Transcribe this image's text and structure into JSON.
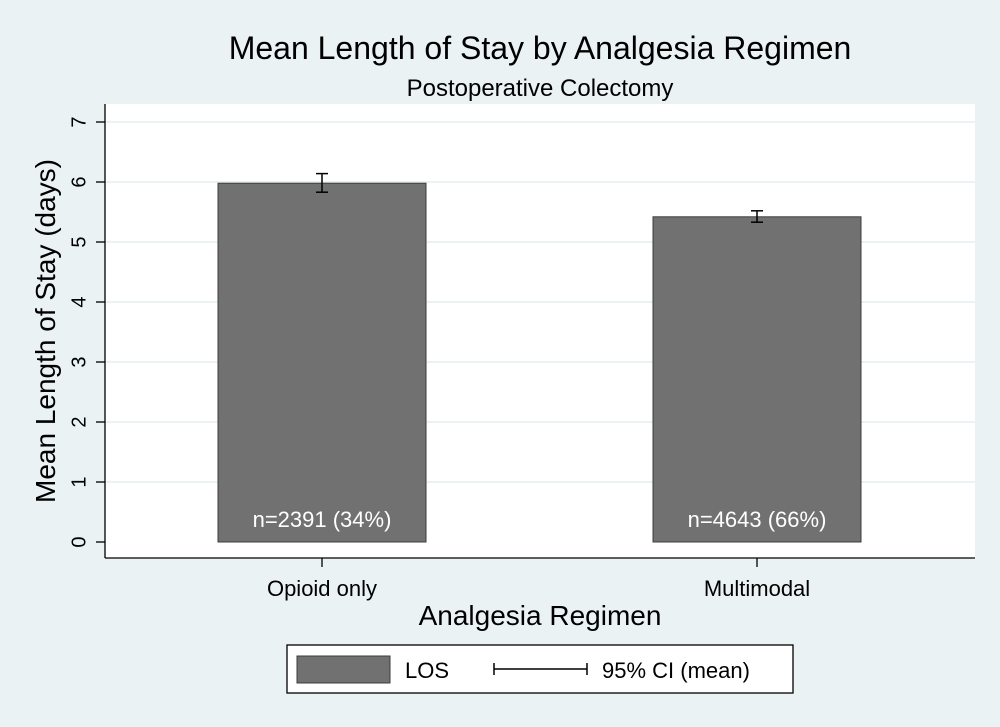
{
  "chart_data": {
    "type": "bar",
    "title": "Mean Length of Stay by Analgesia Regimen",
    "subtitle": "Postoperative Colectomy",
    "xlabel": "Analgesia Regimen",
    "ylabel": "Mean Length of Stay (days)",
    "ylim": [
      0,
      7
    ],
    "yticks": [
      0,
      1,
      2,
      3,
      4,
      5,
      6,
      7
    ],
    "categories": [
      "Opioid only",
      "Multimodal"
    ],
    "series": [
      {
        "name": "LOS",
        "values": [
          5.98,
          5.42
        ],
        "ci_low": [
          5.83,
          5.33
        ],
        "ci_high": [
          6.14,
          5.52
        ],
        "labels": [
          "n=2391 (34%)",
          "n=4643 (66%)"
        ]
      }
    ],
    "legend": {
      "position": "bottom",
      "items": [
        {
          "key": "bar",
          "label": "LOS"
        },
        {
          "key": "ci",
          "label": "95% CI (mean)"
        }
      ]
    },
    "grid": true
  },
  "colors": {
    "background": "#eaf2f3",
    "plot_area": "#ffffff",
    "bar_fill": "#717171",
    "bar_stroke": "#3c3c3c",
    "gridline": "#eaf2f3",
    "text": "#000000",
    "bar_label": "#ffffff"
  }
}
